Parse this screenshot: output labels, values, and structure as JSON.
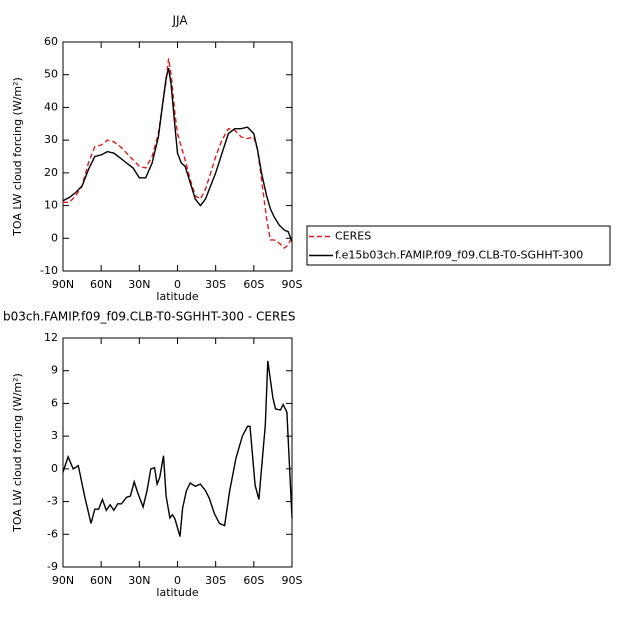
{
  "chart_data": [
    {
      "type": "line",
      "title": "JJA",
      "x_label": "latitude",
      "y_label": "TOA LW cloud forcing (W/m²)",
      "x": [
        90,
        85,
        80,
        75,
        70,
        65,
        60,
        55,
        50,
        45,
        40,
        35,
        30,
        25,
        20,
        15,
        12,
        9,
        7,
        5,
        2,
        0,
        -3,
        -6,
        -10,
        -14,
        -18,
        -22,
        -26,
        -30,
        -35,
        -40,
        -45,
        -50,
        -55,
        -60,
        -63,
        -66,
        -70,
        -73,
        -76,
        -80,
        -84,
        -87,
        -90
      ],
      "series": [
        {
          "name": "CERES",
          "color": "#e41a1c",
          "dash": true,
          "values": [
            11,
            11,
            13,
            16,
            23,
            28,
            28.5,
            30,
            29.5,
            28,
            26,
            24,
            22,
            21.5,
            25,
            32,
            40,
            48,
            55,
            50,
            38,
            32,
            28,
            24,
            18,
            13,
            12,
            15,
            20,
            25,
            30,
            33.5,
            33,
            31,
            30.5,
            31,
            27,
            18,
            6,
            -0.5,
            -0.5,
            -1.5,
            -3,
            -2,
            0.5
          ]
        },
        {
          "name": "f.e15b03ch.FAMIP.f09_f09.CLB-T0-SGHHT-300",
          "color": "#000000",
          "dash": false,
          "values": [
            11.5,
            12.5,
            14,
            16,
            21,
            25,
            25.5,
            26.5,
            26,
            24.5,
            23,
            21.5,
            18.5,
            18.5,
            23,
            31,
            40,
            49,
            52,
            47,
            34,
            26,
            23,
            22,
            17,
            12,
            10,
            12,
            16,
            20,
            26,
            32,
            33.5,
            33.5,
            34,
            32,
            27,
            20,
            13,
            9,
            6.5,
            4,
            2.5,
            2,
            -1
          ]
        }
      ],
      "xlim": [
        90,
        -90
      ],
      "xticks": [
        {
          "value": 90,
          "label": "90N"
        },
        {
          "value": 60,
          "label": "60N"
        },
        {
          "value": 30,
          "label": "30N"
        },
        0,
        {
          "value": -30,
          "label": "30S"
        },
        {
          "value": -60,
          "label": "60S"
        },
        {
          "value": -90,
          "label": "90S"
        }
      ],
      "ylim": [
        -10,
        60
      ],
      "yticks": [
        -10,
        0,
        10,
        20,
        30,
        40,
        50,
        60
      ],
      "legend": "right"
    },
    {
      "type": "line",
      "title": "b03ch.FAMIP.f09_f09.CLB-T0-SGHHT-300 - CERES",
      "x_label": "latitude",
      "y_label": "TOA LW cloud forcing (W/m²)",
      "x": [
        90,
        86,
        82,
        78,
        73,
        68,
        65,
        62,
        59,
        56,
        53,
        50,
        47,
        44,
        40,
        37,
        34,
        31,
        27,
        24,
        21,
        18,
        16,
        14,
        11,
        9,
        6,
        4,
        2,
        -2,
        -4,
        -7,
        -10,
        -14,
        -18,
        -22,
        -25,
        -29,
        -33,
        -37,
        -41,
        -46,
        -51,
        -55,
        -57,
        -61,
        -64,
        -66,
        -69,
        -71,
        -75,
        -77,
        -81,
        -83,
        -86,
        -90
      ],
      "series": [
        {
          "color": "#000000",
          "dash": false,
          "values": [
            -0.3,
            1.1,
            0,
            0.3,
            -2.5,
            -5,
            -3.7,
            -3.7,
            -2.8,
            -3.8,
            -3.3,
            -3.8,
            -3.2,
            -3.2,
            -2.6,
            -2.5,
            -1.2,
            -2.3,
            -3.5,
            -2,
            0,
            0.1,
            -1.4,
            -0.8,
            1.2,
            -2.5,
            -4.5,
            -4.2,
            -4.6,
            -6.2,
            -3.6,
            -2,
            -1.3,
            -1.6,
            -1.4,
            -2,
            -2.7,
            -4.1,
            -5,
            -5.2,
            -2,
            1,
            3,
            3.9,
            3.9,
            -1.5,
            -2.8,
            0,
            4,
            9.9,
            6.5,
            5.5,
            5.4,
            5.9,
            5.2,
            -4.5
          ]
        }
      ],
      "xlim": [
        90,
        -90
      ],
      "xticks": [
        {
          "value": 90,
          "label": "90N"
        },
        {
          "value": 60,
          "label": "60N"
        },
        {
          "value": 30,
          "label": "30N"
        },
        0,
        {
          "value": -30,
          "label": "30S"
        },
        {
          "value": -60,
          "label": "60S"
        },
        {
          "value": -90,
          "label": "90S"
        }
      ],
      "ylim": [
        -9,
        12
      ],
      "yticks": [
        -9,
        -6,
        -3,
        0,
        3,
        6,
        9,
        12
      ]
    }
  ]
}
